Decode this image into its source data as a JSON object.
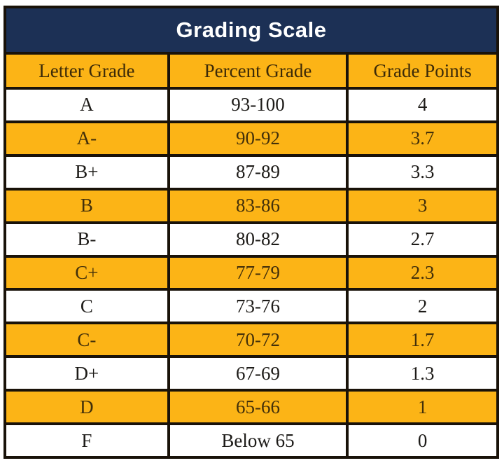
{
  "title": "Grading Scale",
  "table": {
    "columns": {
      "letter": "Letter Grade",
      "percent": "Percent Grade",
      "points": "Grade Points"
    },
    "rows": [
      {
        "letter": "A",
        "percent": "93-100",
        "points": "4"
      },
      {
        "letter": "A-",
        "percent": "90-92",
        "points": "3.7"
      },
      {
        "letter": "B+",
        "percent": "87-89",
        "points": "3.3"
      },
      {
        "letter": "B",
        "percent": "83-86",
        "points": "3"
      },
      {
        "letter": "B-",
        "percent": "80-82",
        "points": "2.7"
      },
      {
        "letter": "C+",
        "percent": "77-79",
        "points": "2.3"
      },
      {
        "letter": "C",
        "percent": "73-76",
        "points": "2"
      },
      {
        "letter": "C-",
        "percent": "70-72",
        "points": "1.7"
      },
      {
        "letter": "D+",
        "percent": "67-69",
        "points": "1.3"
      },
      {
        "letter": "D",
        "percent": "65-66",
        "points": "1"
      },
      {
        "letter": "F",
        "percent": "Below 65",
        "points": "0"
      }
    ]
  },
  "colors": {
    "navy_header_bg": "#1c3055",
    "gold_row_bg": "#fcb416",
    "border": "#191209",
    "title_text": "#ffffff",
    "gold_row_text": "#43300a",
    "white_row_text": "#1d1b18"
  }
}
